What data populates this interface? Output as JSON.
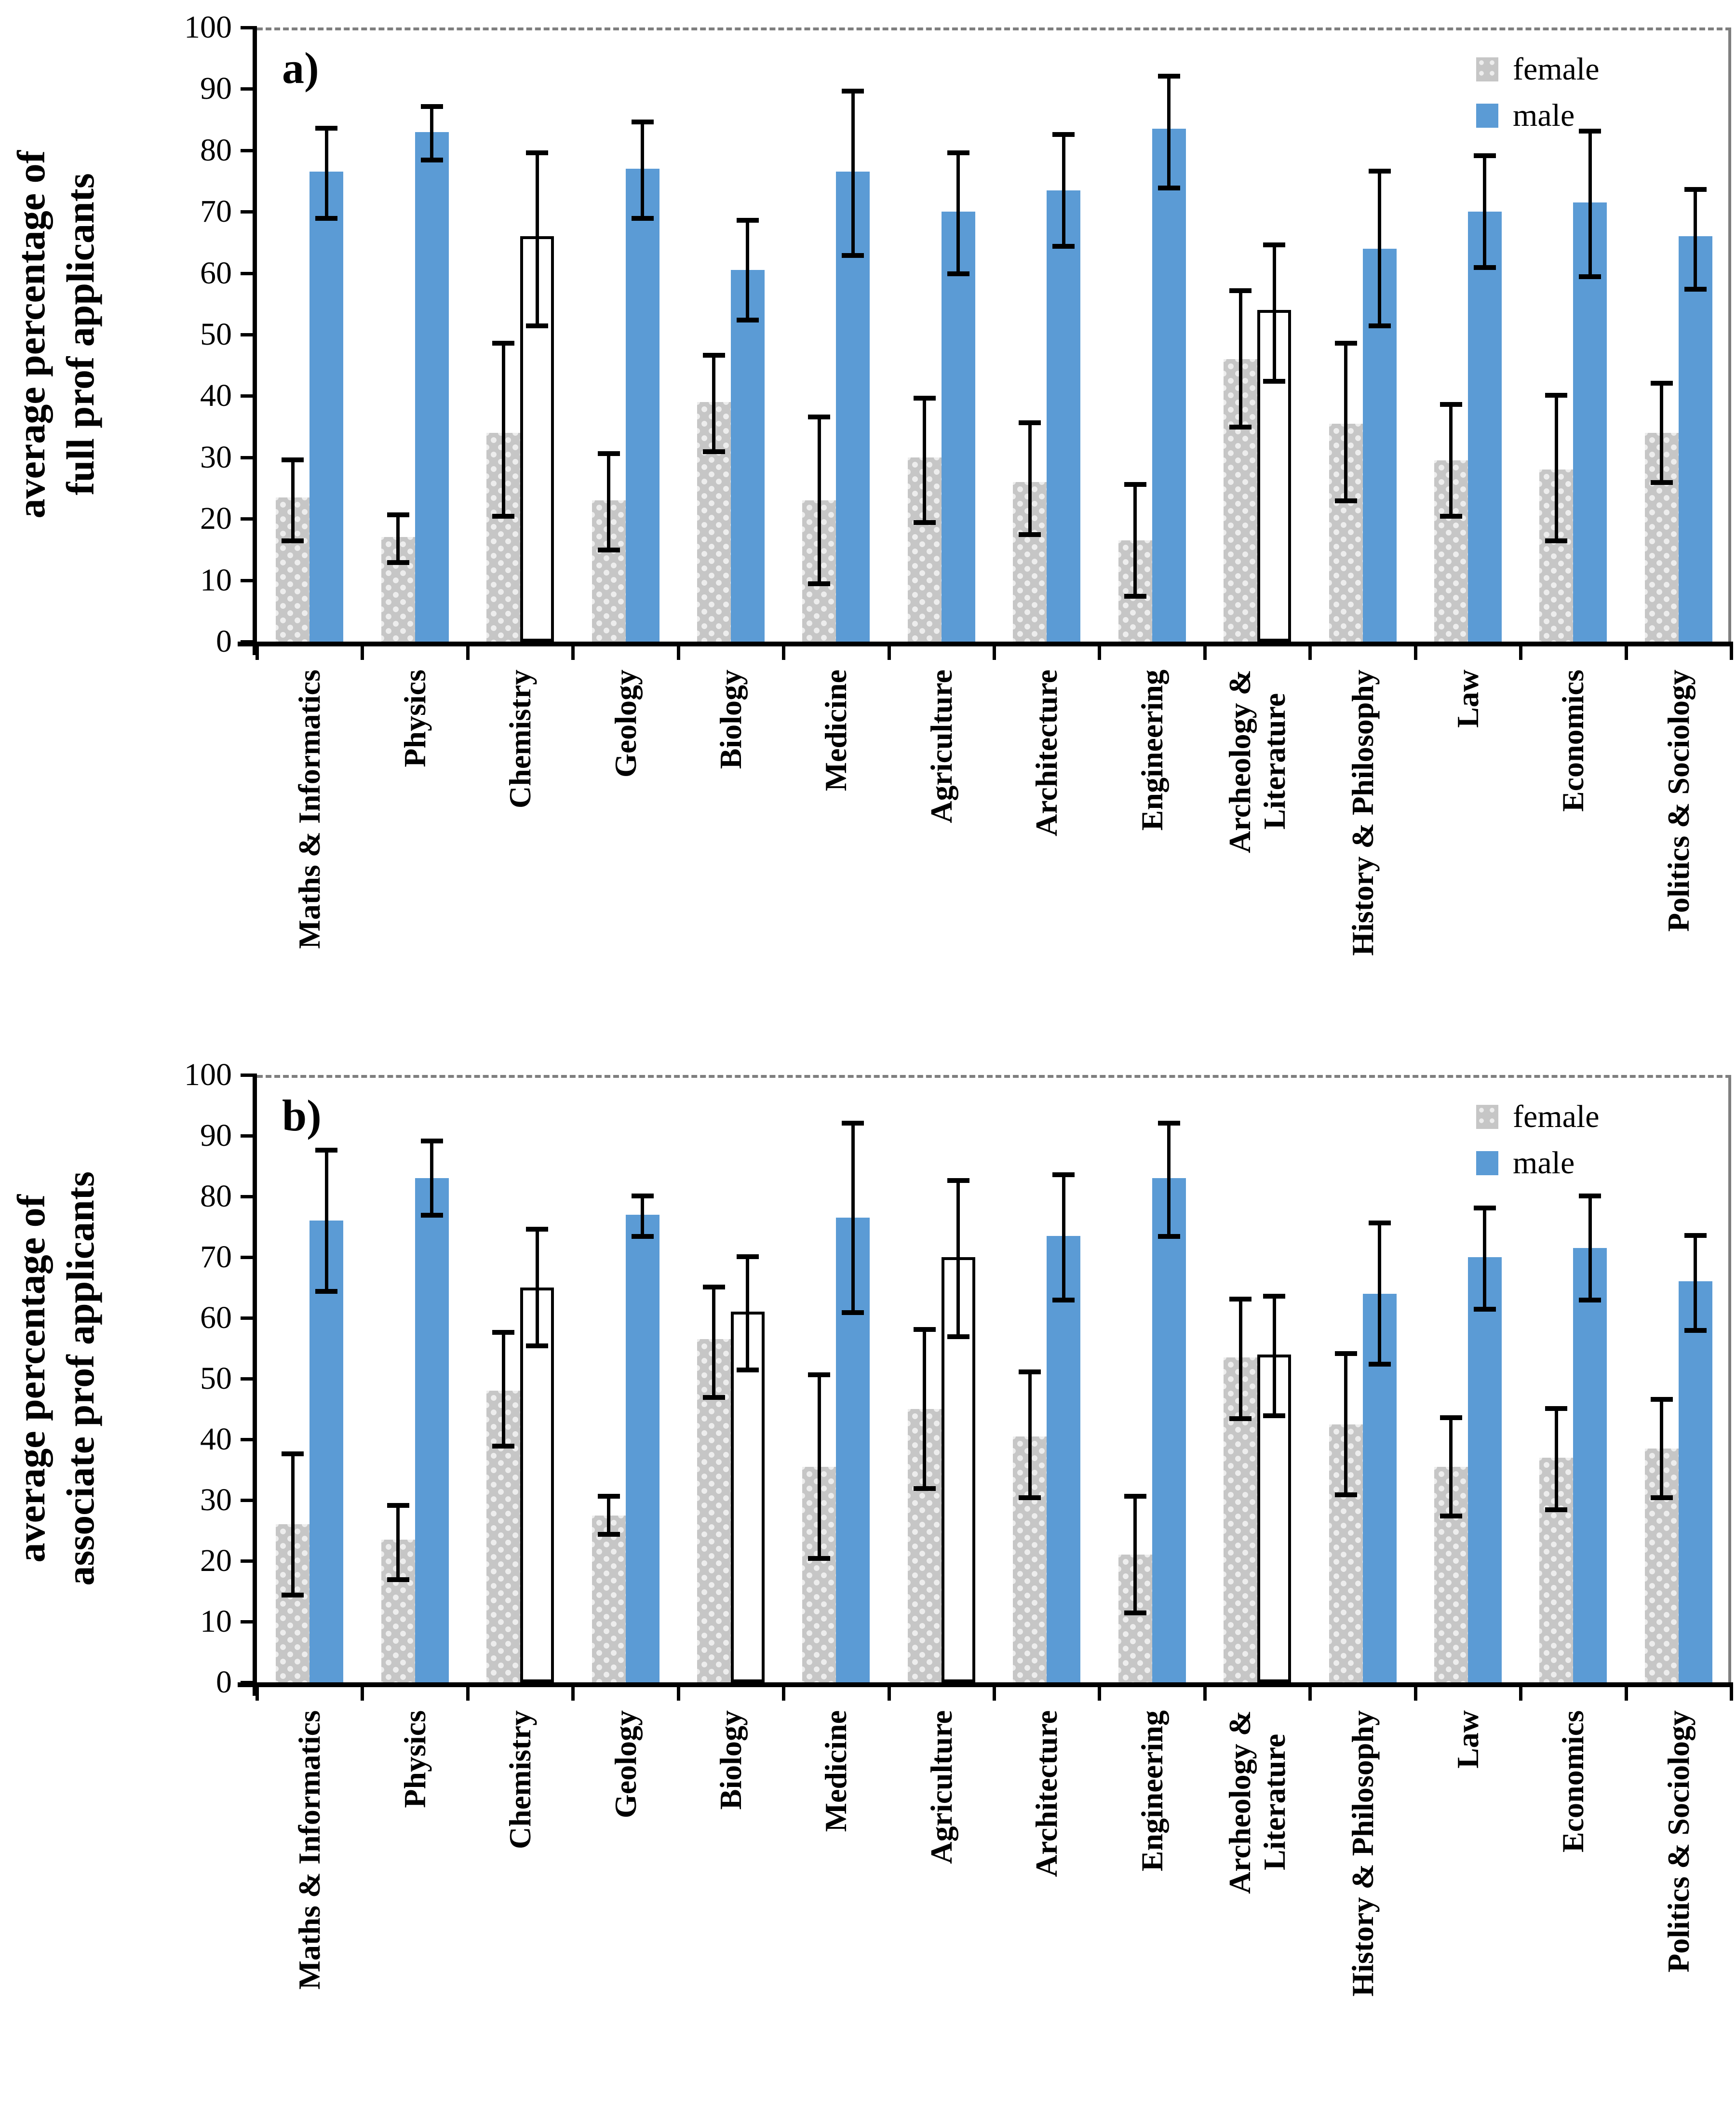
{
  "figure": {
    "panels": [
      {
        "panel_label": "a)",
        "ylabel_lines": [
          "average percentage of",
          "full prof applicants"
        ],
        "legend": {
          "female": "female",
          "male": "male"
        }
      },
      {
        "panel_label": "b)",
        "ylabel_lines": [
          "average percentage of",
          "associate prof applicants"
        ],
        "legend": {
          "female": "female",
          "male": "male"
        }
      }
    ],
    "colors": {
      "male_blue": "#5b9bd5",
      "female_gray": "#c6c6c6",
      "female_dot": "#ededed",
      "white_bar": "#ffffff",
      "error_bar": "#000000",
      "frame_gray": "#7f7f7f",
      "axis_black": "#000000"
    }
  },
  "chart_data": [
    {
      "type": "bar",
      "panel": "a)",
      "title": "",
      "xlabel": "",
      "ylabel": "average percentage of full prof applicants",
      "ylabel_lines": [
        "average percentage of",
        "full prof applicants"
      ],
      "ylim": [
        0,
        100
      ],
      "ytick_step": 10,
      "yticks": [
        0,
        10,
        20,
        30,
        40,
        50,
        60,
        70,
        80,
        90,
        100
      ],
      "grid": "gridline-at-100-dashed",
      "legend_position": "top-right-inside",
      "legend_entries": [
        "female",
        "male"
      ],
      "categories": [
        "Maths & Informatics",
        "Physics",
        "Chemistry",
        "Geology",
        "Biology",
        "Medicine",
        "Agriculture",
        "Architecture",
        "Engineering",
        "Archeology & Literature",
        "History & Philosophy",
        "Law",
        "Economics",
        "Politics & Sociology"
      ],
      "category_label_lines": [
        [
          "Maths & Informatics"
        ],
        [
          "Physics"
        ],
        [
          "Chemistry"
        ],
        [
          "Geology"
        ],
        [
          "Biology"
        ],
        [
          "Medicine"
        ],
        [
          "Agriculture"
        ],
        [
          "Architecture"
        ],
        [
          "Engineering"
        ],
        [
          "Archeology &",
          "Literature"
        ],
        [
          "History & Philosophy"
        ],
        [
          "Law"
        ],
        [
          "Economics"
        ],
        [
          "Politics & Sociology"
        ]
      ],
      "series": [
        {
          "name": "female",
          "fill": "gray-dotted",
          "values": [
            23.5,
            17,
            34,
            23,
            39,
            23,
            30,
            26,
            16.5,
            46,
            35.5,
            29.5,
            28,
            34
          ],
          "ci_low": [
            16,
            12.5,
            20,
            14.5,
            30.5,
            9,
            19,
            17,
            7,
            34.5,
            22.5,
            20,
            16,
            25.5
          ],
          "ci_high": [
            30,
            21,
            49,
            31,
            47,
            37,
            40,
            36,
            26,
            57.5,
            49,
            39,
            40.5,
            42.5
          ]
        },
        {
          "name": "male",
          "fill": "blue",
          "bar_fill": [
            "blue",
            "blue",
            "white",
            "blue",
            "blue",
            "blue",
            "blue",
            "blue",
            "blue",
            "white",
            "blue",
            "blue",
            "blue",
            "blue"
          ],
          "values": [
            76.5,
            83,
            66,
            77,
            60.5,
            76.5,
            70,
            73.5,
            83.5,
            54,
            64,
            70,
            71.5,
            66
          ],
          "ci_low": [
            68.5,
            78,
            51,
            68.5,
            52,
            62.5,
            59.5,
            64,
            73.5,
            42,
            51,
            60.5,
            59,
            57
          ],
          "ci_high": [
            84,
            87.5,
            80,
            85,
            69,
            90,
            80,
            83,
            92.5,
            65,
            77,
            79.5,
            83.5,
            74
          ]
        }
      ]
    },
    {
      "type": "bar",
      "panel": "b)",
      "title": "",
      "xlabel": "",
      "ylabel": "average percentage of associate prof applicants",
      "ylabel_lines": [
        "average percentage of",
        "associate prof applicants"
      ],
      "ylim": [
        0,
        100
      ],
      "ytick_step": 10,
      "yticks": [
        0,
        10,
        20,
        30,
        40,
        50,
        60,
        70,
        80,
        90,
        100
      ],
      "grid": "gridline-at-100-dashed",
      "legend_position": "top-right-inside",
      "legend_entries": [
        "female",
        "male"
      ],
      "categories": [
        "Maths & Informatics",
        "Physics",
        "Chemistry",
        "Geology",
        "Biology",
        "Medicine",
        "Agriculture",
        "Architecture",
        "Engineering",
        "Archeology & Literature",
        "History & Philosophy",
        "Law",
        "Economics",
        "Politics & Sociology"
      ],
      "category_label_lines": [
        [
          "Maths & Informatics"
        ],
        [
          "Physics"
        ],
        [
          "Chemistry"
        ],
        [
          "Geology"
        ],
        [
          "Biology"
        ],
        [
          "Medicine"
        ],
        [
          "Agriculture"
        ],
        [
          "Architecture"
        ],
        [
          "Engineering"
        ],
        [
          "Archeology &",
          "Literature"
        ],
        [
          "History & Philosophy"
        ],
        [
          "Law"
        ],
        [
          "Economics"
        ],
        [
          "Politics & Sociology"
        ]
      ],
      "series": [
        {
          "name": "female",
          "fill": "gray-dotted",
          "values": [
            26,
            23.5,
            48,
            27.5,
            56.5,
            35.5,
            45,
            40.5,
            21,
            53.5,
            42.5,
            35.5,
            37,
            38.5
          ],
          "ci_low": [
            14,
            16.5,
            38.5,
            24,
            46.5,
            20,
            31.5,
            30,
            11,
            43,
            30.5,
            27,
            28,
            30
          ],
          "ci_high": [
            38,
            29.5,
            58,
            31,
            65.5,
            51,
            58.5,
            51.5,
            31,
            63.5,
            54.5,
            44,
            45.5,
            47
          ]
        },
        {
          "name": "male",
          "fill": "blue",
          "bar_fill": [
            "blue",
            "blue",
            "white",
            "blue",
            "white",
            "blue",
            "white",
            "blue",
            "blue",
            "white",
            "blue",
            "blue",
            "blue",
            "blue"
          ],
          "values": [
            76,
            83,
            65,
            77,
            61,
            76.5,
            70,
            73.5,
            83,
            54,
            64,
            70,
            71.5,
            66
          ],
          "ci_low": [
            64,
            76.5,
            55,
            73,
            51,
            60.5,
            56.5,
            62.5,
            73,
            43.5,
            52,
            61,
            62.5,
            57.5
          ],
          "ci_high": [
            88,
            89.5,
            75,
            80.5,
            70.5,
            92.5,
            83,
            84,
            92.5,
            64,
            76,
            78.5,
            80.5,
            74
          ]
        }
      ]
    }
  ]
}
